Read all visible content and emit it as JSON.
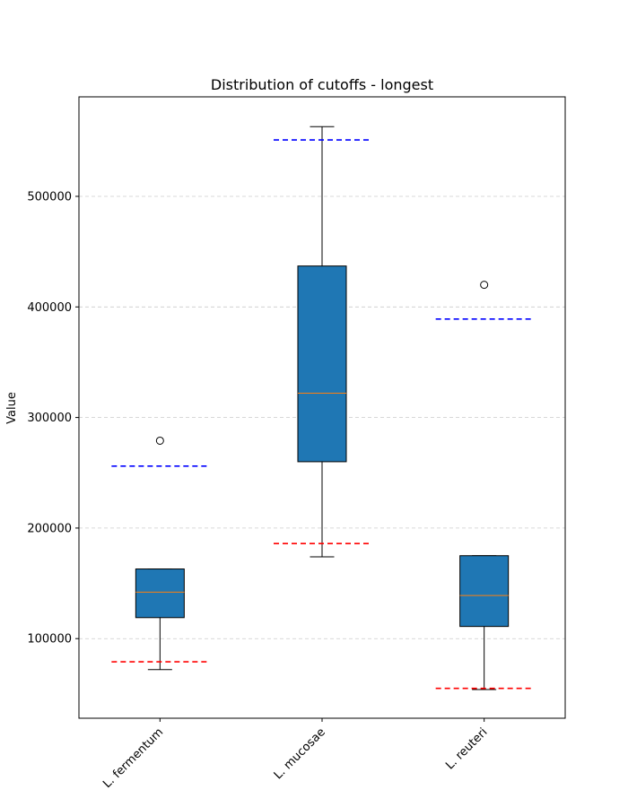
{
  "chart_data": {
    "type": "box",
    "title": "Distribution of cutoffs - longest",
    "xlabel": "",
    "ylabel": "Value",
    "ylim": [
      28000,
      590000
    ],
    "yticks": [
      100000,
      200000,
      300000,
      400000,
      500000
    ],
    "ytick_labels": [
      "100000",
      "200000",
      "300000",
      "400000",
      "500000"
    ],
    "grid": "y, dashed light gray",
    "box_color": "#1f77b4",
    "median_color": "#ff7f0e",
    "categories": [
      "L. fermentum",
      "L. mucosae",
      "L. reuteri"
    ],
    "boxes": [
      {
        "name": "L. fermentum",
        "whisker_low": 72000,
        "q1": 119000,
        "median": 142000,
        "q3": 163000,
        "whisker_high": 163000,
        "outliers": [
          279000
        ]
      },
      {
        "name": "L. mucosae",
        "whisker_low": 174000,
        "q1": 260000,
        "median": 322000,
        "q3": 437000,
        "whisker_high": 563000,
        "outliers": []
      },
      {
        "name": "L. reuteri",
        "whisker_low": 54000,
        "q1": 111000,
        "median": 139000,
        "q3": 175000,
        "whisker_high": 175000,
        "outliers": [
          420000
        ]
      }
    ],
    "reference_lines": [
      {
        "category": "L. fermentum",
        "color": "#0000ff",
        "value": 256000
      },
      {
        "category": "L. fermentum",
        "color": "#ff0000",
        "value": 79000
      },
      {
        "category": "L. mucosae",
        "color": "#0000ff",
        "value": 551000
      },
      {
        "category": "L. mucosae",
        "color": "#ff0000",
        "value": 186000
      },
      {
        "category": "L. reuteri",
        "color": "#0000ff",
        "value": 389000
      },
      {
        "category": "L. reuteri",
        "color": "#ff0000",
        "value": 55000
      }
    ]
  }
}
